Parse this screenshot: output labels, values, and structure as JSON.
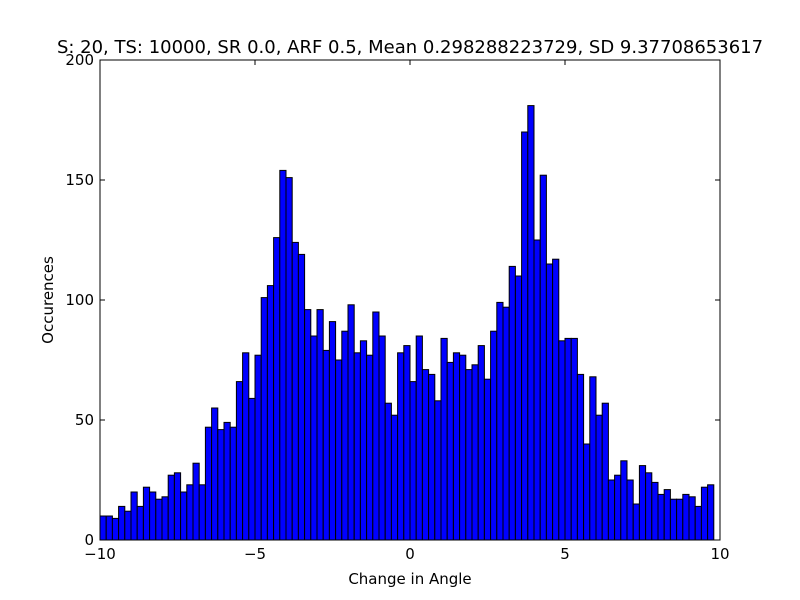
{
  "chart_data": {
    "type": "bar",
    "title": "S: 20, TS: 10000, SR 0.0, ARF 0.5, Mean 0.298288223729, SD 9.37708653617",
    "xlabel": "Change in Angle",
    "ylabel": "Occurences",
    "xlim": [
      -10,
      10
    ],
    "ylim": [
      0,
      200
    ],
    "xticks": [
      -10,
      -5,
      0,
      5,
      10
    ],
    "xtick_labels": [
      "−10",
      "−5",
      "0",
      "5",
      "10"
    ],
    "yticks": [
      0,
      50,
      100,
      150,
      200
    ],
    "ytick_labels": [
      "0",
      "50",
      "100",
      "150",
      "200"
    ],
    "bin_width": 0.2,
    "bin_start": -10,
    "values": [
      10,
      10,
      9,
      14,
      12,
      20,
      14,
      22,
      20,
      17,
      18,
      27,
      28,
      20,
      23,
      32,
      23,
      47,
      55,
      46,
      49,
      47,
      66,
      78,
      59,
      77,
      101,
      106,
      126,
      154,
      151,
      124,
      119,
      96,
      85,
      96,
      79,
      91,
      75,
      87,
      98,
      78,
      83,
      77,
      95,
      85,
      57,
      52,
      78,
      81,
      66,
      85,
      71,
      69,
      58,
      84,
      74,
      78,
      77,
      71,
      73,
      81,
      67,
      87,
      99,
      97,
      114,
      110,
      170,
      181,
      125,
      152,
      115,
      117,
      83,
      84,
      84,
      69,
      40,
      68,
      52,
      57,
      25,
      27,
      33,
      25,
      15,
      31,
      28,
      24,
      19,
      21,
      17,
      17,
      19,
      18,
      14,
      22,
      23
    ],
    "bar_color": "#0000ff",
    "edge_color": "#000000",
    "grid": false
  }
}
